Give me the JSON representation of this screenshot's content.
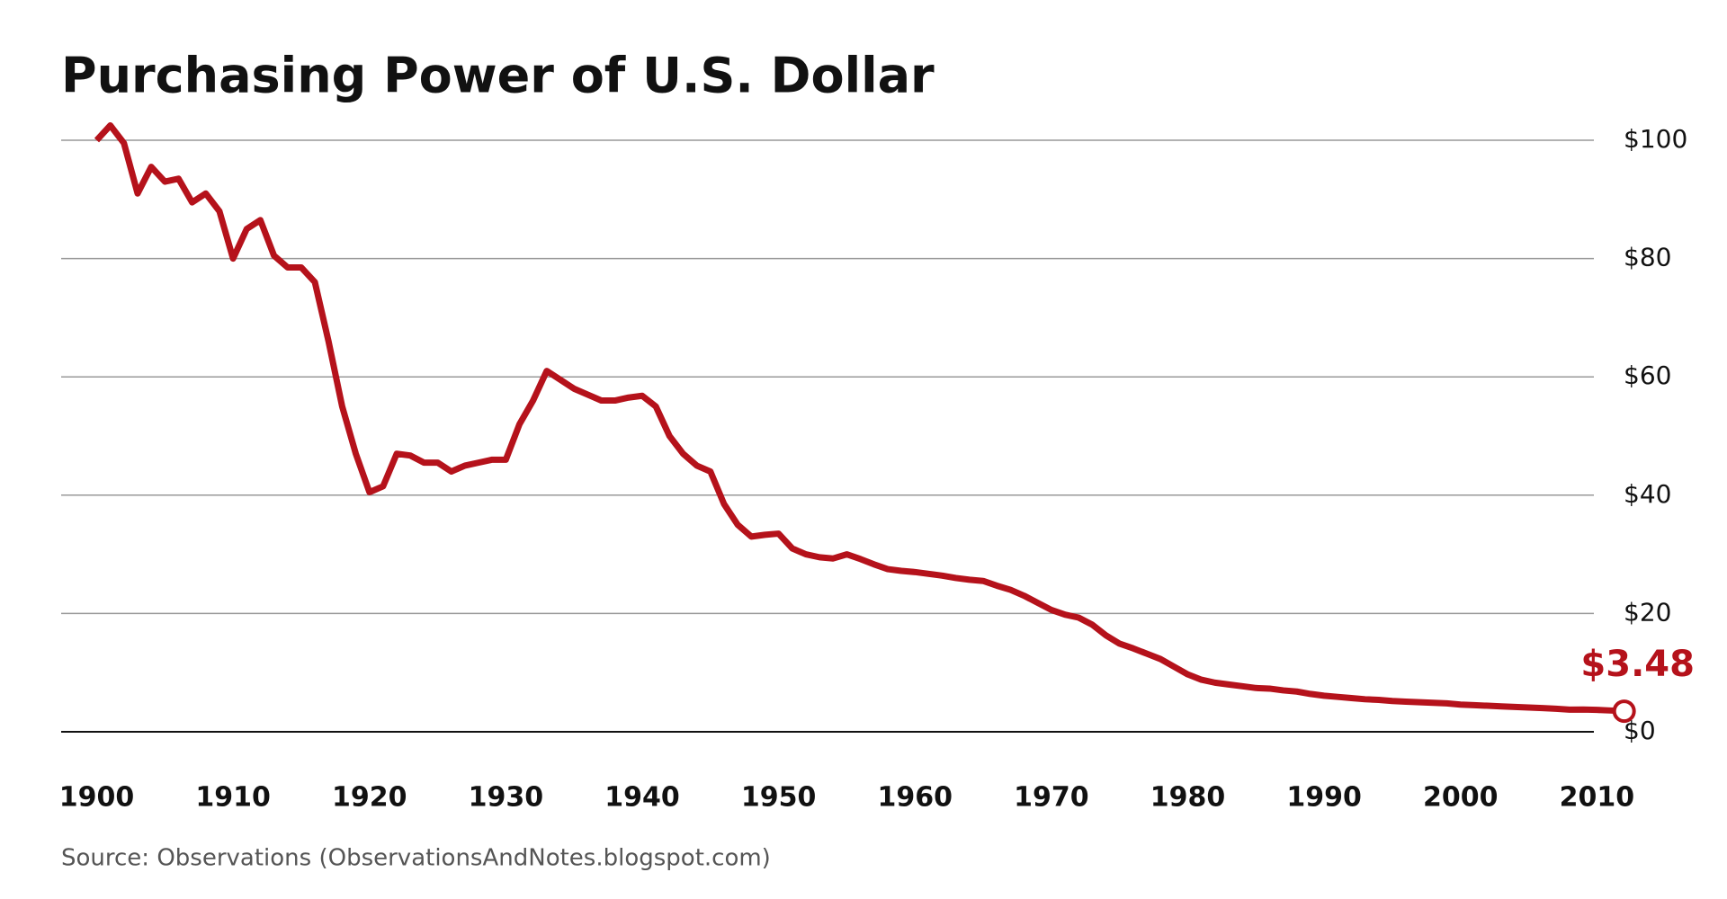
{
  "chart_data": {
    "type": "line",
    "title": "Purchasing Power of U.S. Dollar",
    "source": "Source: Observations (ObservationsAndNotes.blogspot.com)",
    "annotation": "$3.48",
    "x": [
      1900,
      1901,
      1902,
      1903,
      1904,
      1905,
      1906,
      1907,
      1908,
      1909,
      1910,
      1911,
      1912,
      1913,
      1914,
      1915,
      1916,
      1917,
      1918,
      1919,
      1920,
      1921,
      1922,
      1923,
      1924,
      1925,
      1926,
      1927,
      1928,
      1929,
      1930,
      1931,
      1932,
      1933,
      1934,
      1935,
      1936,
      1937,
      1938,
      1939,
      1940,
      1941,
      1942,
      1943,
      1944,
      1945,
      1946,
      1947,
      1948,
      1949,
      1950,
      1951,
      1952,
      1953,
      1954,
      1955,
      1956,
      1957,
      1958,
      1959,
      1960,
      1961,
      1962,
      1963,
      1964,
      1965,
      1966,
      1967,
      1968,
      1969,
      1970,
      1971,
      1972,
      1973,
      1974,
      1975,
      1976,
      1977,
      1978,
      1979,
      1980,
      1981,
      1982,
      1983,
      1984,
      1985,
      1986,
      1987,
      1988,
      1989,
      1990,
      1991,
      1992,
      1993,
      1994,
      1995,
      1996,
      1997,
      1998,
      1999,
      2000,
      2001,
      2002,
      2003,
      2004,
      2005,
      2006,
      2007,
      2008,
      2009,
      2010,
      2011,
      2012
    ],
    "series": [
      {
        "name": "Purchasing power",
        "color": "#b5121b",
        "values": [
          100,
          102.5,
          99.5,
          91,
          95.5,
          93,
          93.5,
          89.5,
          91,
          88,
          80,
          85,
          86.5,
          80.5,
          78.5,
          78.5,
          76,
          66,
          55,
          47,
          40.5,
          41.5,
          47,
          46.7,
          45.5,
          45.5,
          44,
          45,
          45.5,
          46,
          46,
          52,
          56,
          61,
          59.5,
          58,
          57,
          56,
          56,
          56.5,
          56.8,
          55,
          50,
          47,
          45,
          44,
          38.5,
          35,
          33,
          33.3,
          33.5,
          31,
          30,
          29.5,
          29.3,
          30,
          29.2,
          28.3,
          27.5,
          27.2,
          27,
          26.7,
          26.4,
          26,
          25.7,
          25.5,
          24.7,
          24,
          23,
          21.8,
          20.6,
          19.8,
          19.3,
          18.1,
          16.3,
          14.9,
          14.1,
          13.2,
          12.3,
          11,
          9.7,
          8.8,
          8.3,
          8,
          7.7,
          7.4,
          7.3,
          7,
          6.8,
          6.4,
          6.1,
          5.9,
          5.7,
          5.5,
          5.4,
          5.2,
          5.1,
          5,
          4.9,
          4.8,
          4.6,
          4.5,
          4.4,
          4.3,
          4.2,
          4.1,
          4,
          3.9,
          3.75,
          3.76,
          3.7,
          3.6,
          3.48
        ]
      }
    ],
    "xlim": [
      1897,
      2014
    ],
    "xticks": [
      1900,
      1910,
      1920,
      1930,
      1940,
      1950,
      1960,
      1970,
      1980,
      1990,
      2000,
      2010
    ],
    "ylim": [
      0,
      100
    ],
    "yticks": [
      {
        "value": 0,
        "label": "$0"
      },
      {
        "value": 20,
        "label": "$20"
      },
      {
        "value": 40,
        "label": "$40"
      },
      {
        "value": 60,
        "label": "$60"
      },
      {
        "value": 80,
        "label": "$80"
      },
      {
        "value": 100,
        "label": "$100"
      }
    ],
    "grid": true
  }
}
